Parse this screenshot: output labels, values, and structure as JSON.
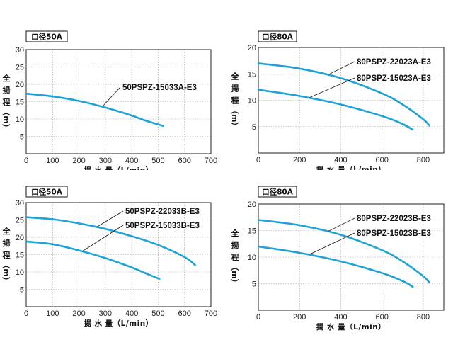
{
  "chart_data": [
    {
      "type": "line",
      "title": "口径50A",
      "xlabel": "揚 水 量（L/min）",
      "ylabel": [
        "全",
        "揚",
        "程",
        "（m）"
      ],
      "xlim": [
        0,
        700
      ],
      "ylim": [
        0,
        30
      ],
      "xticks": [
        "0",
        "100",
        "200",
        "300",
        "400",
        "500",
        "600",
        "700"
      ],
      "yticks": [
        "5",
        "10",
        "15",
        "20",
        "25",
        "30"
      ],
      "xtick_values": [
        0,
        100,
        200,
        300,
        400,
        500,
        600,
        700
      ],
      "ytick_values": [
        5,
        10,
        15,
        20,
        25,
        30
      ],
      "grid": true,
      "series": [
        {
          "name": "50PSPZ-15033A-E3",
          "x": [
            0,
            100,
            200,
            300,
            400,
            450,
            520
          ],
          "y": [
            17.3,
            16.5,
            15.2,
            13.3,
            11.0,
            9.6,
            8.0
          ],
          "label_at_x": 290
        }
      ]
    },
    {
      "type": "line",
      "title": "口径80A",
      "xlabel": "揚 水 量（L/min）",
      "ylabel": [
        "全",
        "揚",
        "程",
        "（m）"
      ],
      "xlim": [
        0,
        900
      ],
      "ylim": [
        0,
        20
      ],
      "xticks": [
        "0",
        "200",
        "400",
        "600",
        "800"
      ],
      "yticks": [
        "5",
        "10",
        "15",
        "20"
      ],
      "xtick_values": [
        0,
        200,
        400,
        600,
        800
      ],
      "ytick_values": [
        5,
        10,
        15,
        20
      ],
      "grid": true,
      "series": [
        {
          "name": "80PSPZ-22023A-E3",
          "x": [
            0,
            200,
            400,
            600,
            700,
            800,
            830
          ],
          "y": [
            17.0,
            16.0,
            14.2,
            11.3,
            9.2,
            6.4,
            5.2
          ],
          "label_at_x": 340
        },
        {
          "name": "80PSPZ-15023A-E3",
          "x": [
            0,
            200,
            400,
            600,
            700,
            750
          ],
          "y": [
            12.0,
            10.8,
            9.2,
            7.0,
            5.5,
            4.4
          ],
          "label_at_x": 250
        }
      ]
    },
    {
      "type": "line",
      "title": "口径50A",
      "xlabel": "揚 水 量（L/min）",
      "ylabel": [
        "全",
        "揚",
        "程",
        "（m）"
      ],
      "xlim": [
        0,
        700
      ],
      "ylim": [
        0,
        30
      ],
      "xticks": [
        "0",
        "100",
        "200",
        "300",
        "400",
        "500",
        "600",
        "700"
      ],
      "yticks": [
        "5",
        "10",
        "15",
        "20",
        "25",
        "30"
      ],
      "xtick_values": [
        0,
        100,
        200,
        300,
        400,
        500,
        600,
        700
      ],
      "ytick_values": [
        5,
        10,
        15,
        20,
        25,
        30
      ],
      "grid": true,
      "series": [
        {
          "name": "50PSPZ-22033B-E3",
          "x": [
            0,
            100,
            200,
            300,
            400,
            500,
            600,
            640
          ],
          "y": [
            25.8,
            25.2,
            24.0,
            22.4,
            20.3,
            17.8,
            14.3,
            12.0
          ],
          "label_at_x": 270
        },
        {
          "name": "50PSPZ-15033B-E3",
          "x": [
            0,
            100,
            200,
            300,
            400,
            450,
            505
          ],
          "y": [
            18.8,
            18.0,
            16.2,
            14.0,
            11.3,
            9.7,
            8.0
          ],
          "label_at_x": 215
        }
      ]
    },
    {
      "type": "line",
      "title": "口径80A",
      "xlabel": "揚 水 量（L/min）",
      "ylabel": [
        "全",
        "揚",
        "程",
        "（m）"
      ],
      "xlim": [
        0,
        900
      ],
      "ylim": [
        0,
        20
      ],
      "xticks": [
        "0",
        "200",
        "400",
        "600",
        "800"
      ],
      "yticks": [
        "5",
        "10",
        "15",
        "20"
      ],
      "xtick_values": [
        0,
        200,
        400,
        600,
        800
      ],
      "ytick_values": [
        5,
        10,
        15,
        20
      ],
      "grid": true,
      "series": [
        {
          "name": "80PSPZ-22023B-E3",
          "x": [
            0,
            200,
            400,
            600,
            700,
            800,
            830
          ],
          "y": [
            17.0,
            16.0,
            14.2,
            11.3,
            9.2,
            6.4,
            5.2
          ],
          "label_at_x": 340
        },
        {
          "name": "80PSPZ-15023B-E3",
          "x": [
            0,
            200,
            400,
            600,
            700,
            750
          ],
          "y": [
            12.0,
            10.8,
            9.2,
            7.0,
            5.5,
            4.4
          ],
          "label_at_x": 250
        }
      ]
    }
  ],
  "colors": {
    "curve": "#1fa3d6",
    "grid": "#999999",
    "axis": "#222222"
  }
}
